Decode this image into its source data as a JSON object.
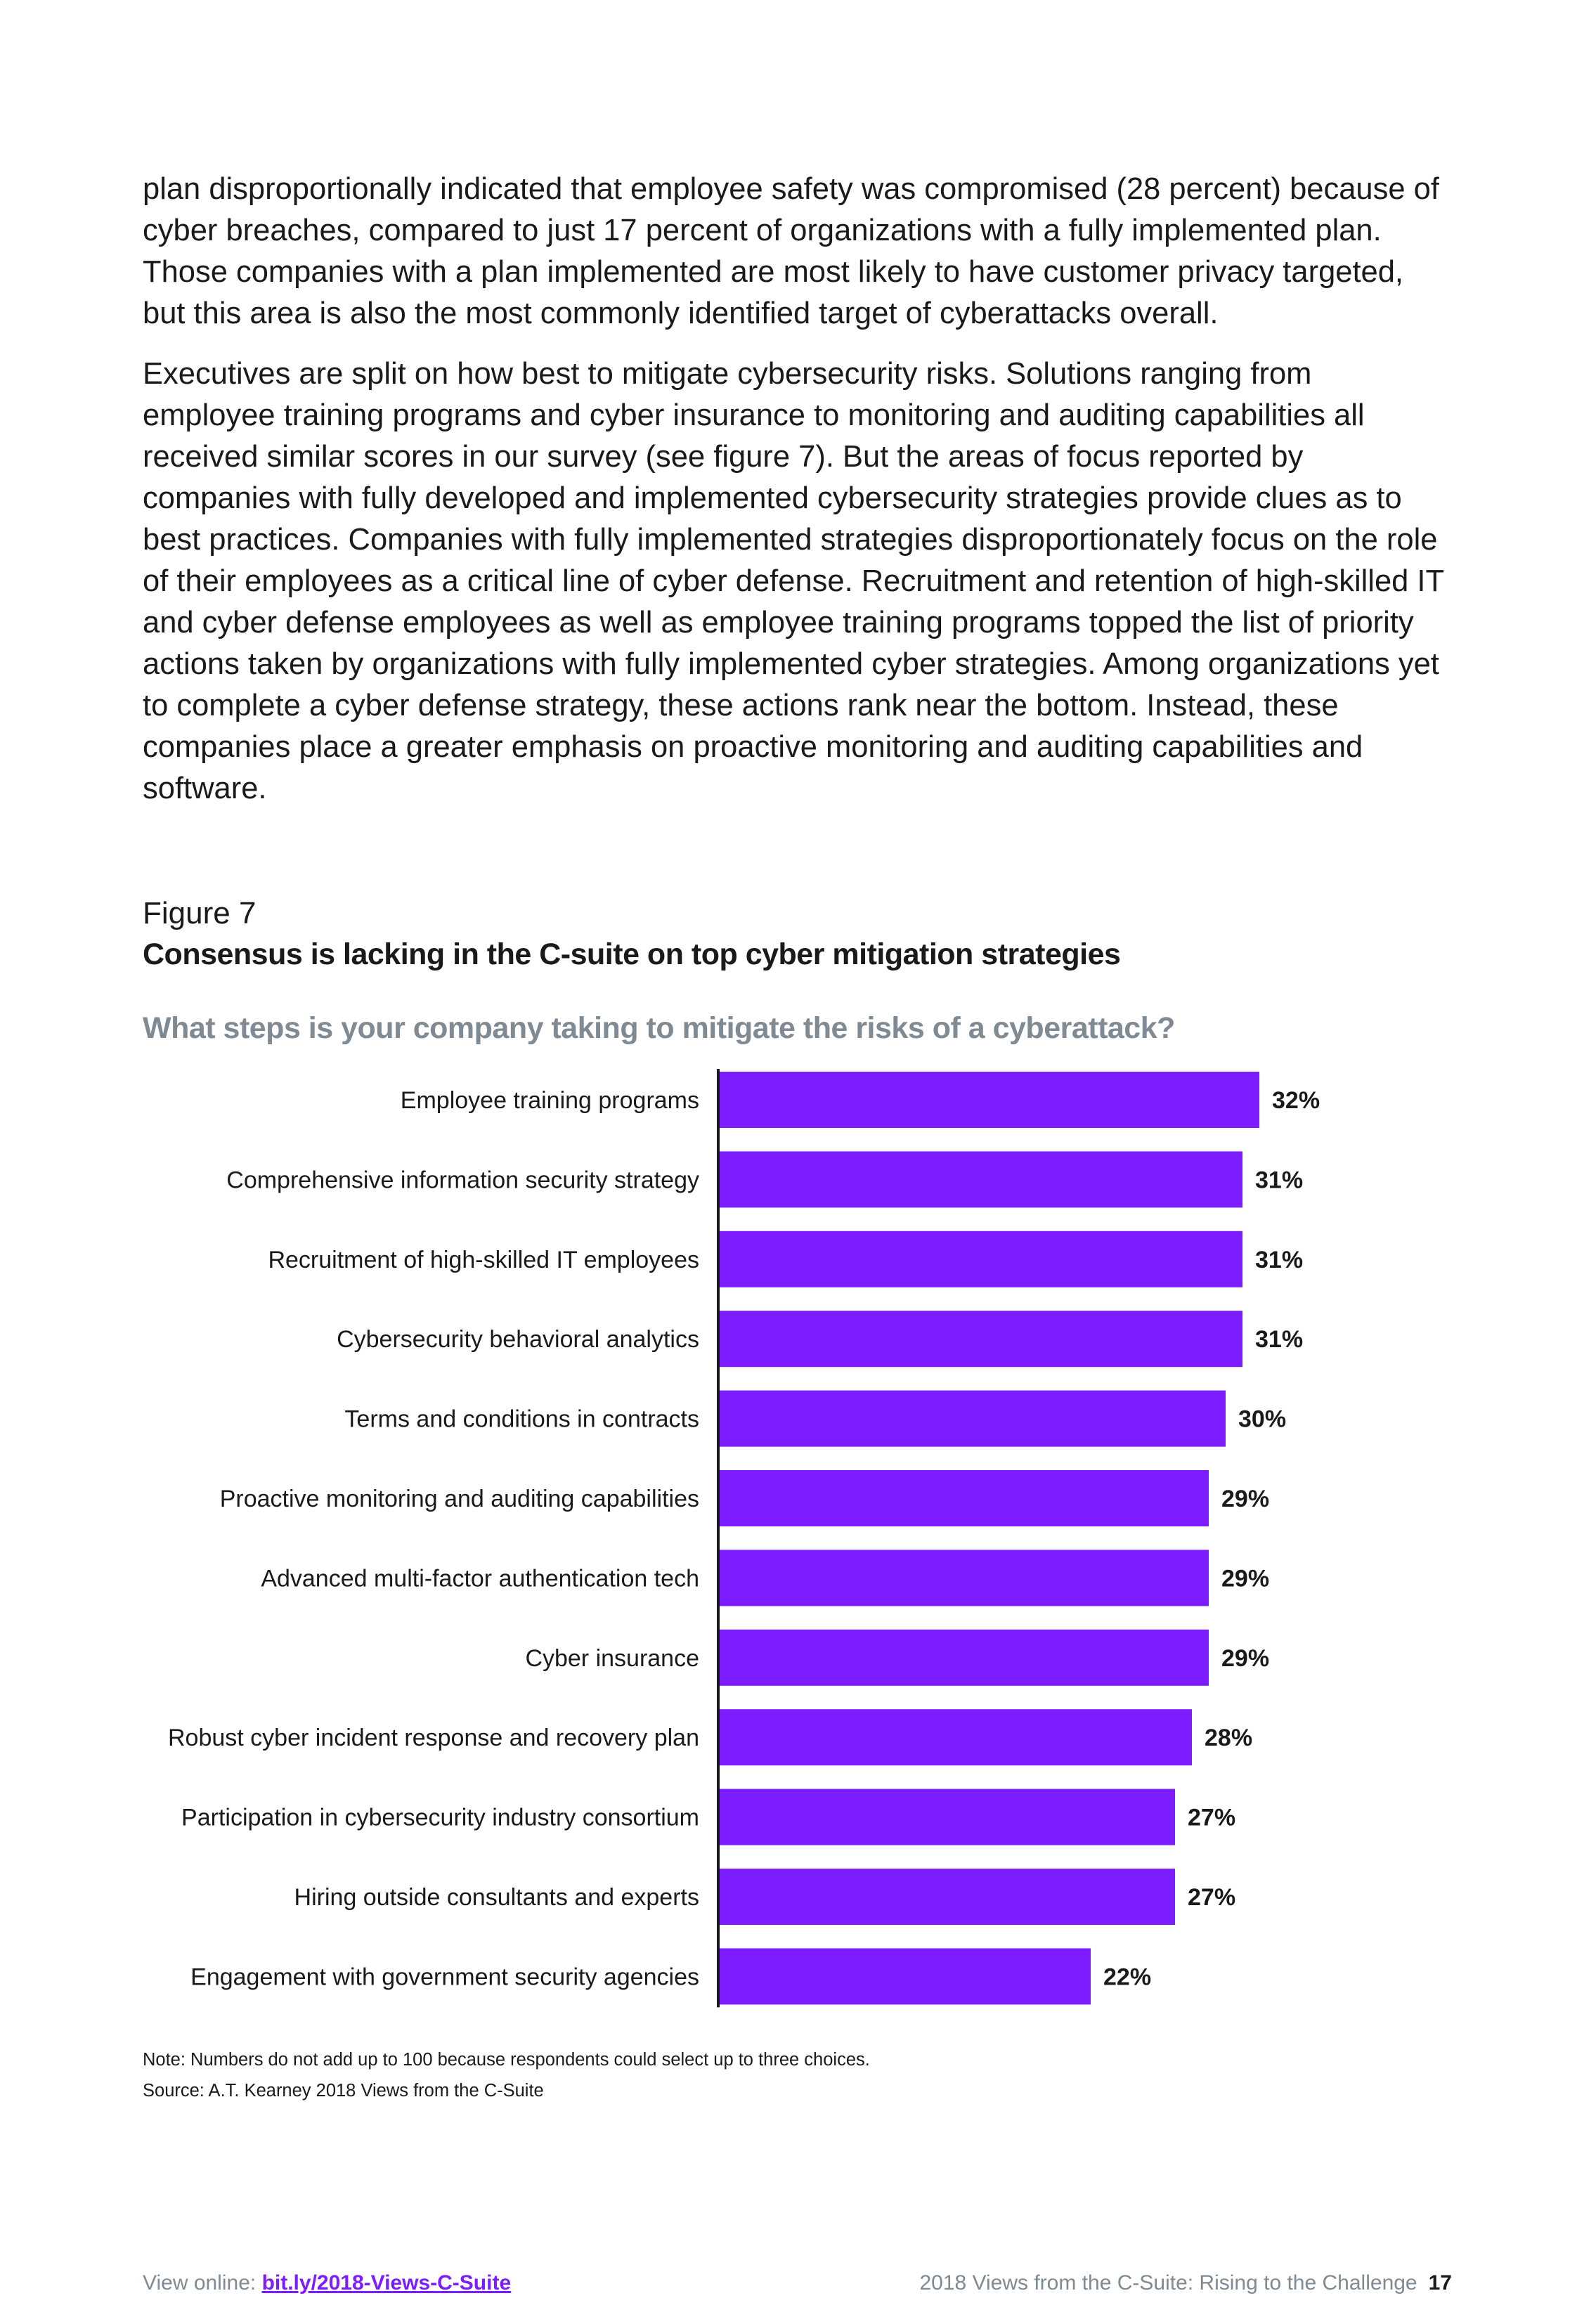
{
  "body": {
    "paragraph_1": "plan disproportionally indicated that employee safety was compromised (28 percent) because of cyber breaches, compared to just 17 percent of organizations with a fully implemented plan. Those companies with a plan implemented are most likely to have customer privacy targeted, but this area is also the most commonly identified target of cyberattacks overall.",
    "paragraph_2": "Executives are split on how best to mitigate cybersecurity risks. Solutions ranging from employee training programs and cyber insurance to monitoring and auditing capabilities all received similar scores in our survey (see figure 7). But the areas of focus reported by companies with fully developed and implemented cybersecurity strategies provide clues as to best practices. Companies with fully implemented strategies disproportionately focus on the role of their employees as a critical line of cyber defense. Recruitment and retention of high-skilled IT and cyber defense employees as well as employee training programs topped the list of priority actions taken by organizations with fully implemented cyber strategies. Among organizations yet to complete a cyber defense strategy, these actions rank near the bottom. Instead, these companies place a greater emphasis on proactive monitoring and auditing capabilities and software."
  },
  "figure": {
    "label": "Figure 7",
    "title": "Consensus is lacking in the C-suite on top cyber mitigation strategies",
    "question": "What steps is your company taking to mitigate the risks of a cyberattack?",
    "note": "Note: Numbers do not add up to 100 because respondents could select up to three choices.",
    "source": "Source: A.T. Kearney 2018 Views from the C-Suite"
  },
  "chart_data": {
    "type": "bar",
    "orientation": "horizontal",
    "title": "What steps is your company taking to mitigate the risks of a cyberattack?",
    "categories": [
      "Employee training programs",
      "Comprehensive information security strategy",
      "Recruitment of high-skilled IT employees",
      "Cybersecurity behavioral analytics",
      "Terms and conditions in contracts",
      "Proactive monitoring and auditing capabilities",
      "Advanced multi-factor authentication tech",
      "Cyber insurance",
      "Robust cyber incident response and recovery plan",
      "Participation in cybersecurity industry consortium",
      "Hiring outside consultants and experts",
      "Engagement with government security agencies"
    ],
    "values": [
      32,
      31,
      31,
      31,
      30,
      29,
      29,
      29,
      28,
      27,
      27,
      22
    ],
    "value_labels": [
      "32%",
      "31%",
      "31%",
      "31%",
      "30%",
      "29%",
      "29%",
      "29%",
      "28%",
      "27%",
      "27%",
      "22%"
    ],
    "unit": "%",
    "xlim": [
      0,
      32
    ],
    "bar_color": "#7c1cff",
    "xlabel": "",
    "ylabel": ""
  },
  "footer": {
    "view_online_label": "View online: ",
    "link": "bit.ly/2018-Views-C-Suite",
    "report_title": "2018 Views from the C-Suite: Rising to the Challenge",
    "page_number": "17"
  }
}
